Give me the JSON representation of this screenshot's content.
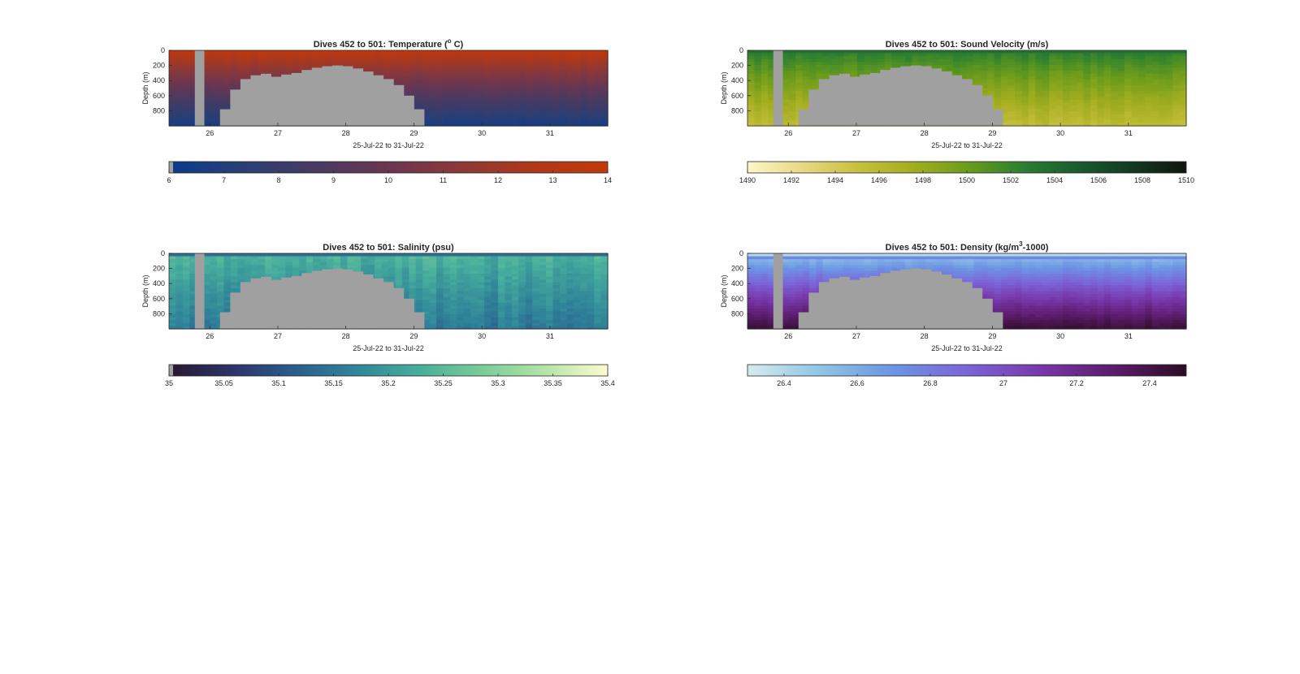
{
  "figure": {
    "background": "#ffffff",
    "mask_color": "#a0a0a0"
  },
  "chart_data": [
    {
      "type": "heatmap",
      "title_main": "Dives 452 to 501: Temperature (",
      "title_sup": "o",
      "title_tail": " C)",
      "xlabel": "25-Jul-22 to 31-Jul-22",
      "ylabel": "Depth (m)",
      "xlim": [
        25.4,
        31.85
      ],
      "ylim": [
        0,
        1000
      ],
      "x_ticks": [
        "26",
        "27",
        "28",
        "29",
        "30",
        "31"
      ],
      "y_ticks": [
        "0",
        "200",
        "400",
        "600",
        "800"
      ],
      "y_tick_values": [
        0,
        200,
        400,
        600,
        800
      ],
      "colorbar": {
        "min": 6,
        "max": 14,
        "ticks": [
          "6",
          "7",
          "8",
          "9",
          "10",
          "11",
          "12",
          "13",
          "14"
        ],
        "colors": [
          "#083c8c",
          "#2a3e74",
          "#483a62",
          "#6a3650",
          "#8c3838",
          "#b03818",
          "#c03a0a"
        ]
      },
      "field": {
        "surface_value": 13.6,
        "deep_value": 6.6,
        "noise": 0.15
      }
    },
    {
      "type": "heatmap",
      "title_main": "Dives 452 to 501: Sound Velocity (m/s)",
      "title_sup": "",
      "title_tail": "",
      "xlabel": "25-Jul-22 to 31-Jul-22",
      "ylabel": "Depth (m)",
      "xlim": [
        25.4,
        31.85
      ],
      "ylim": [
        0,
        1000
      ],
      "x_ticks": [
        "26",
        "27",
        "28",
        "29",
        "30",
        "31"
      ],
      "y_ticks": [
        "0",
        "200",
        "400",
        "600",
        "800"
      ],
      "y_tick_values": [
        0,
        200,
        400,
        600,
        800
      ],
      "colorbar": {
        "min": 1490,
        "max": 1510,
        "ticks": [
          "1490",
          "1492",
          "1494",
          "1496",
          "1498",
          "1500",
          "1502",
          "1504",
          "1506",
          "1508",
          "1510"
        ],
        "colors": [
          "#fcf6c8",
          "#e8d884",
          "#c8c040",
          "#a4ae20",
          "#6c9c1c",
          "#2c8030",
          "#1a5c30",
          "#123a20",
          "#101410"
        ]
      },
      "field": {
        "surface_value": 1503.0,
        "deep_value": 1495.6,
        "noise": 0.5
      }
    },
    {
      "type": "heatmap",
      "title_main": "Dives 452 to 501: Salinity (psu)",
      "title_sup": "",
      "title_tail": "",
      "xlabel": "25-Jul-22 to 31-Jul-22",
      "ylabel": "Depth (m)",
      "xlim": [
        25.4,
        31.85
      ],
      "ylim": [
        0,
        1000
      ],
      "x_ticks": [
        "26",
        "27",
        "28",
        "29",
        "30",
        "31"
      ],
      "y_ticks": [
        "0",
        "200",
        "400",
        "600",
        "800"
      ],
      "y_tick_values": [
        0,
        200,
        400,
        600,
        800
      ],
      "colorbar": {
        "min": 35,
        "max": 35.4,
        "ticks": [
          "35",
          "35.05",
          "35.1",
          "35.15",
          "35.2",
          "35.25",
          "35.3",
          "35.35",
          "35.4"
        ],
        "colors": [
          "#281830",
          "#2c3468",
          "#2c5c8c",
          "#30869a",
          "#48ae9c",
          "#7acc98",
          "#b4e4a8",
          "#fcfcd0"
        ]
      },
      "field": {
        "surface_value": 35.24,
        "deep_value": 35.15,
        "noise": 0.02
      }
    },
    {
      "type": "heatmap",
      "title_main": "Dives 452 to 501: Density (kg/m",
      "title_sup": "3",
      "title_tail": "-1000)",
      "xlabel": "25-Jul-22 to 31-Jul-22",
      "ylabel": "Depth (m)",
      "xlim": [
        25.4,
        31.85
      ],
      "ylim": [
        0,
        1000
      ],
      "x_ticks": [
        "26",
        "27",
        "28",
        "29",
        "30",
        "31"
      ],
      "y_ticks": [
        "0",
        "200",
        "400",
        "600",
        "800"
      ],
      "y_tick_values": [
        0,
        200,
        400,
        600,
        800
      ],
      "colorbar": {
        "min": 26.3,
        "max": 27.5,
        "ticks": [
          "26.4",
          "26.6",
          "26.8",
          "27",
          "27.2",
          "27.4"
        ],
        "colors": [
          "#d4ecf0",
          "#90c4e4",
          "#6c94e4",
          "#7c64d8",
          "#7838ac",
          "#5c1c6c",
          "#2c0c24"
        ]
      },
      "field": {
        "surface_value": 26.45,
        "deep_value": 27.45,
        "noise": 0.03
      }
    }
  ]
}
